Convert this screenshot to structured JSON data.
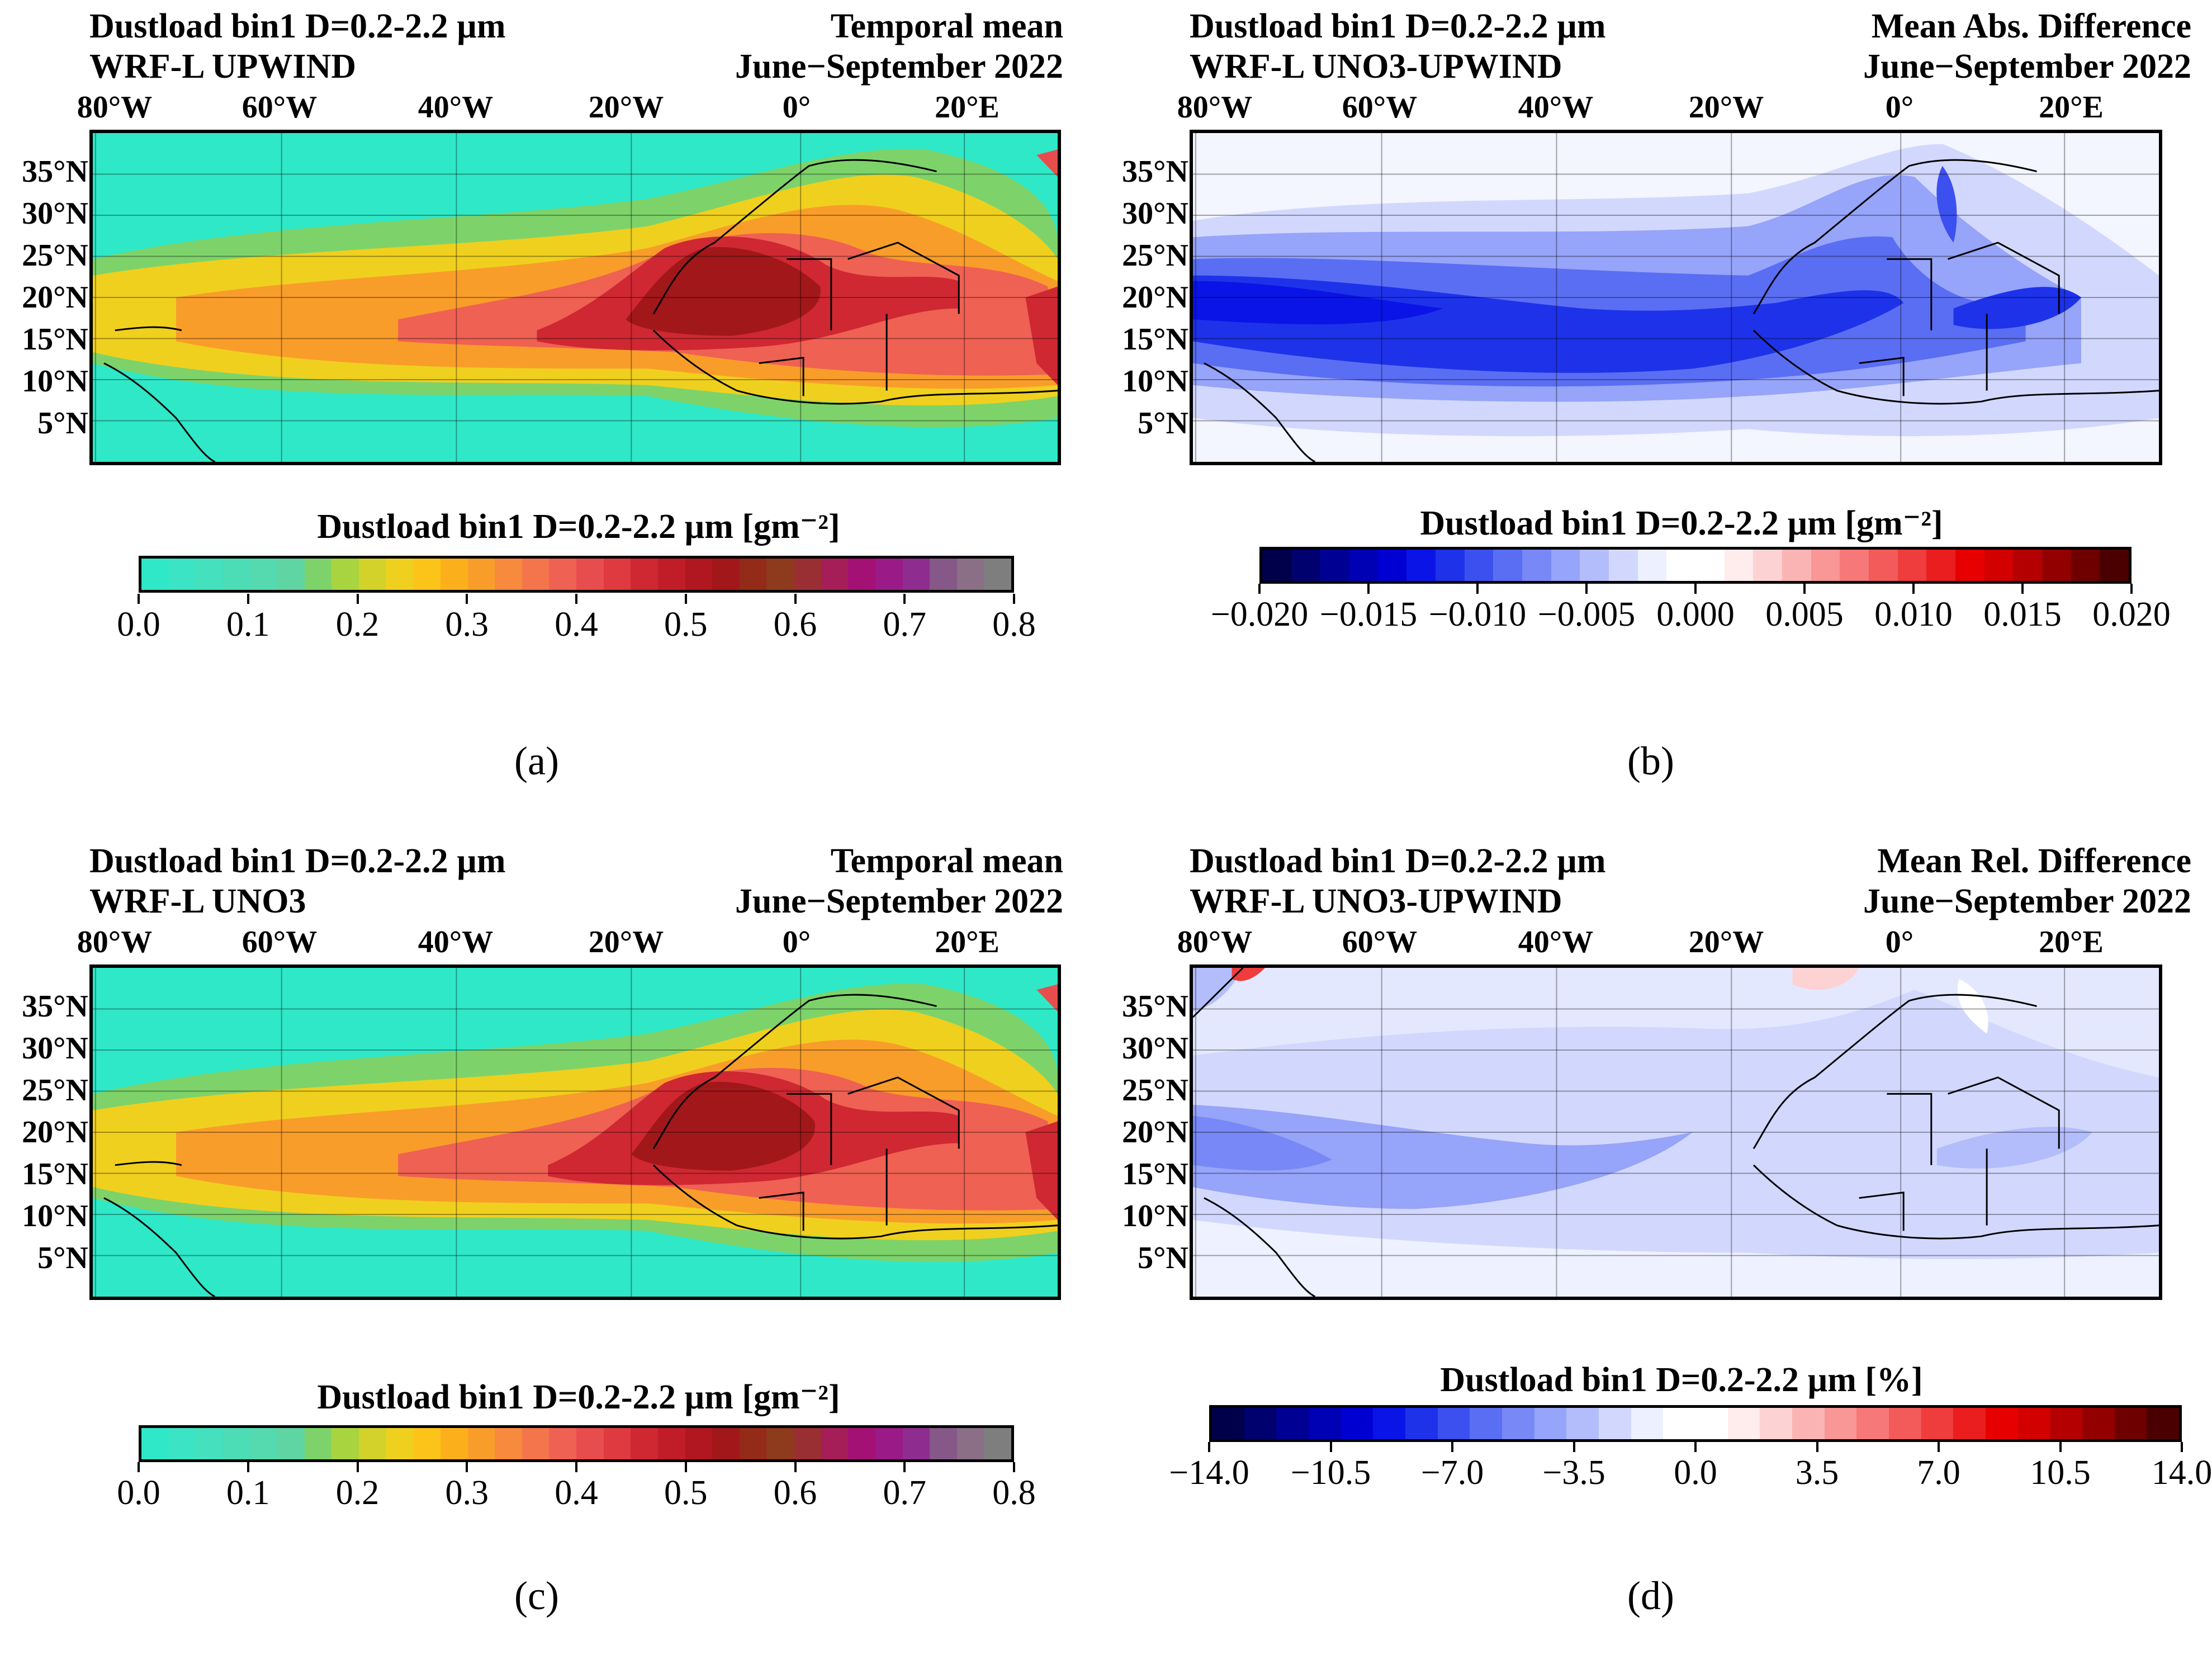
{
  "panels": {
    "a": {
      "title_left_1": "Dustload bin1 D=0.2-2.2 µm",
      "title_left_2": "WRF-L UPWIND",
      "title_right_1": "Temporal mean",
      "title_right_2": "June−September 2022",
      "colorbar_title": "Dustload bin1 D=0.2-2.2 µm [gm⁻²]",
      "colorbar_ticks": [
        "0.0",
        "0.1",
        "0.2",
        "0.3",
        "0.4",
        "0.5",
        "0.6",
        "0.7",
        "0.8"
      ],
      "label": "(a)"
    },
    "b": {
      "title_left_1": "Dustload bin1 D=0.2-2.2 µm",
      "title_left_2": "WRF-L UNO3-UPWIND",
      "title_right_1": "Mean Abs. Difference",
      "title_right_2": "June−September 2022",
      "colorbar_title": "Dustload bin1 D=0.2-2.2 µm [gm⁻²]",
      "colorbar_ticks": [
        "−0.020",
        "−0.015",
        "−0.010",
        "−0.005",
        "0.000",
        "0.005",
        "0.010",
        "0.015",
        "0.020"
      ],
      "label": "(b)"
    },
    "c": {
      "title_left_1": "Dustload bin1 D=0.2-2.2 µm",
      "title_left_2": "WRF-L UNO3",
      "title_right_1": "Temporal mean",
      "title_right_2": "June−September 2022",
      "colorbar_title": "Dustload bin1 D=0.2-2.2 µm [gm⁻²]",
      "colorbar_ticks": [
        "0.0",
        "0.1",
        "0.2",
        "0.3",
        "0.4",
        "0.5",
        "0.6",
        "0.7",
        "0.8"
      ],
      "label": "(c)"
    },
    "d": {
      "title_left_1": "Dustload bin1 D=0.2-2.2 µm",
      "title_left_2": "WRF-L UNO3-UPWIND",
      "title_right_1": "Mean Rel. Difference",
      "title_right_2": "June−September 2022",
      "colorbar_title": "Dustload bin1 D=0.2-2.2 µm [%]",
      "colorbar_ticks": [
        "−14.0",
        "−10.5",
        "−7.0",
        "−3.5",
        "0.0",
        "3.5",
        "7.0",
        "10.5",
        "14.0"
      ],
      "label": "(d)"
    }
  },
  "lon_labels": [
    "80°W",
    "60°W",
    "40°W",
    "20°W",
    "0°",
    "20°E"
  ],
  "lat_labels": [
    "35°N",
    "30°N",
    "25°N",
    "20°N",
    "15°N",
    "10°N",
    "5°N"
  ],
  "colormaps": {
    "dust": [
      "#2fe8c8",
      "#3ae4c4",
      "#45e0bd",
      "#4cdcb6",
      "#55d9ae",
      "#5fd5a3",
      "#7dd36a",
      "#a8d43f",
      "#d3d22a",
      "#f0d01e",
      "#fcc419",
      "#fbb01b",
      "#f99d2a",
      "#f78a3c",
      "#f4754b",
      "#ef6153",
      "#e84d4d",
      "#de3a3f",
      "#cf2832",
      "#c01d28",
      "#b01720",
      "#a2171a",
      "#932b18",
      "#8e3a1c",
      "#9a2f33",
      "#a51e57",
      "#a41174",
      "#9a1a88",
      "#8f2c8f",
      "#855887",
      "#8a6f86",
      "#7e7e7e"
    ],
    "diff": [
      "#00004a",
      "#00006e",
      "#000093",
      "#0000b4",
      "#0000d3",
      "#0a14e6",
      "#1e32ea",
      "#3c50ef",
      "#5a6ef3",
      "#7888f6",
      "#96a4f9",
      "#b4bdfb",
      "#d2d8fd",
      "#ecf0ff",
      "#ffffff",
      "#ffffff",
      "#ffecec",
      "#fdd2d2",
      "#fbb4b4",
      "#f99696",
      "#f67878",
      "#f35a5a",
      "#ef3c3c",
      "#ea1e1e",
      "#e60000",
      "#d30000",
      "#b40000",
      "#930000",
      "#6e0000",
      "#4a0000"
    ]
  }
}
